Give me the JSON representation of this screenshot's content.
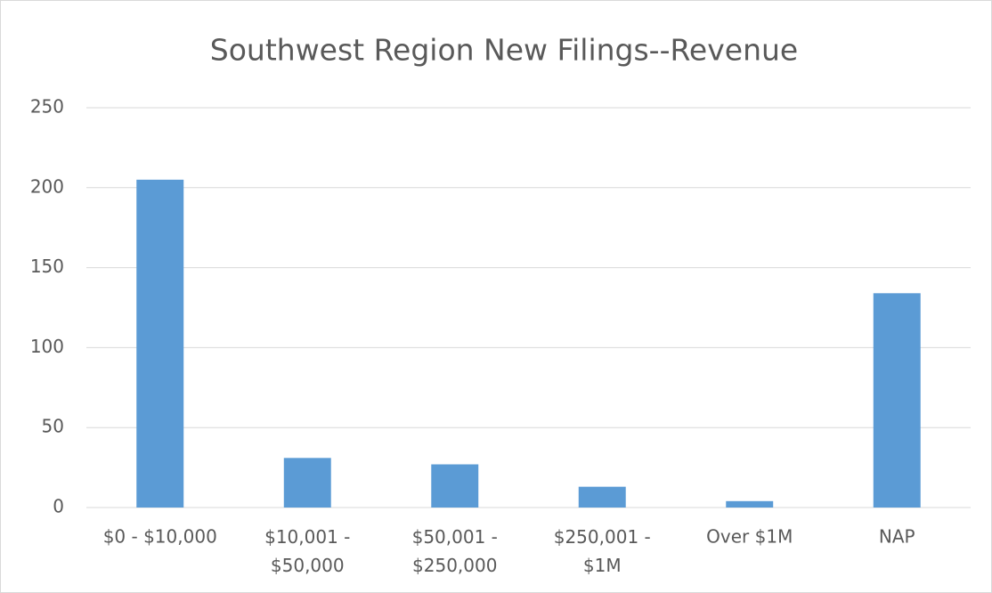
{
  "chart_data": {
    "type": "bar",
    "title": "Southwest Region New Filings--Revenue",
    "categories": [
      "$0 - $10,000",
      "$10,001 - $50,000",
      "$50,001 - $250,000",
      "$250,001 - $1M",
      "Over $1M",
      "NAP"
    ],
    "values": [
      205,
      31,
      27,
      13,
      4,
      134
    ],
    "color": "#5b9bd5",
    "ylim": [
      0,
      250
    ],
    "yticks": [
      0,
      50,
      100,
      150,
      200,
      250
    ],
    "grid": true
  }
}
